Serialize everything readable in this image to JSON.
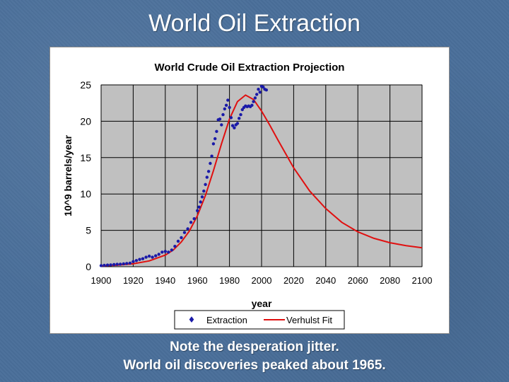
{
  "slide": {
    "title": "World Oil Extraction",
    "caption_line1": "Note the desperation jitter.",
    "caption_line2": "World oil discoveries peaked about 1965."
  },
  "colors": {
    "plot_background": "#c0c0c0",
    "extraction": "#1a1aa8",
    "verhulst_fit": "#e01010",
    "gridline": "#000000"
  },
  "chart_data": {
    "type": "scatter",
    "title": "World Crude Oil Extraction Projection",
    "xlabel": "year",
    "ylabel": "10^9 barrels/year",
    "xlim": [
      1900,
      2100
    ],
    "ylim": [
      0,
      25
    ],
    "x_ticks": [
      1900,
      1920,
      1940,
      1960,
      1980,
      2000,
      2020,
      2040,
      2060,
      2080,
      2100
    ],
    "y_ticks": [
      0,
      5,
      10,
      15,
      20,
      25
    ],
    "grid": true,
    "legend_position": "bottom",
    "series": [
      {
        "name": "Extraction",
        "kind": "points",
        "x": [
          1900,
          1902,
          1904,
          1906,
          1908,
          1910,
          1912,
          1914,
          1916,
          1918,
          1920,
          1922,
          1924,
          1926,
          1928,
          1930,
          1932,
          1934,
          1936,
          1938,
          1940,
          1942,
          1944,
          1946,
          1948,
          1950,
          1952,
          1954,
          1956,
          1958,
          1960,
          1961,
          1962,
          1963,
          1964,
          1965,
          1966,
          1967,
          1968,
          1969,
          1970,
          1971,
          1972,
          1973,
          1974,
          1975,
          1976,
          1977,
          1978,
          1979,
          1980,
          1981,
          1982,
          1983,
          1984,
          1985,
          1986,
          1987,
          1988,
          1989,
          1990,
          1991,
          1992,
          1993,
          1994,
          1995,
          1996,
          1997,
          1998,
          1999,
          2000,
          2001,
          2002,
          2003
        ],
        "y": [
          0.15,
          0.18,
          0.22,
          0.25,
          0.3,
          0.33,
          0.35,
          0.4,
          0.45,
          0.5,
          0.7,
          0.85,
          1.0,
          1.1,
          1.3,
          1.45,
          1.3,
          1.5,
          1.7,
          2.0,
          2.1,
          2.0,
          2.3,
          2.8,
          3.5,
          4.0,
          4.7,
          5.2,
          6.1,
          6.6,
          7.7,
          8.2,
          8.9,
          9.6,
          10.4,
          11.3,
          12.3,
          13.1,
          14.2,
          15.2,
          16.9,
          17.6,
          18.6,
          20.2,
          20.3,
          19.5,
          20.9,
          21.7,
          22.2,
          22.9,
          21.9,
          20.5,
          19.4,
          19.1,
          19.5,
          19.7,
          20.4,
          20.9,
          21.6,
          21.9,
          22.1,
          22.0,
          22.1,
          22.0,
          22.2,
          22.7,
          23.2,
          23.7,
          24.4,
          24.0,
          24.8,
          24.7,
          24.4,
          24.3
        ]
      },
      {
        "name": "Verhulst Fit",
        "kind": "line",
        "x": [
          1900,
          1910,
          1920,
          1930,
          1940,
          1945,
          1950,
          1955,
          1960,
          1965,
          1970,
          1975,
          1980,
          1985,
          1990,
          1995,
          2000,
          2005,
          2010,
          2020,
          2030,
          2040,
          2050,
          2060,
          2070,
          2080,
          2090,
          2100
        ],
        "y": [
          0.1,
          0.2,
          0.4,
          0.8,
          1.6,
          2.3,
          3.4,
          4.9,
          7.0,
          9.8,
          13.2,
          16.9,
          20.3,
          22.7,
          23.6,
          23.0,
          21.4,
          19.5,
          17.5,
          13.6,
          10.4,
          8.0,
          6.1,
          4.8,
          3.9,
          3.3,
          2.9,
          2.6
        ]
      }
    ]
  }
}
